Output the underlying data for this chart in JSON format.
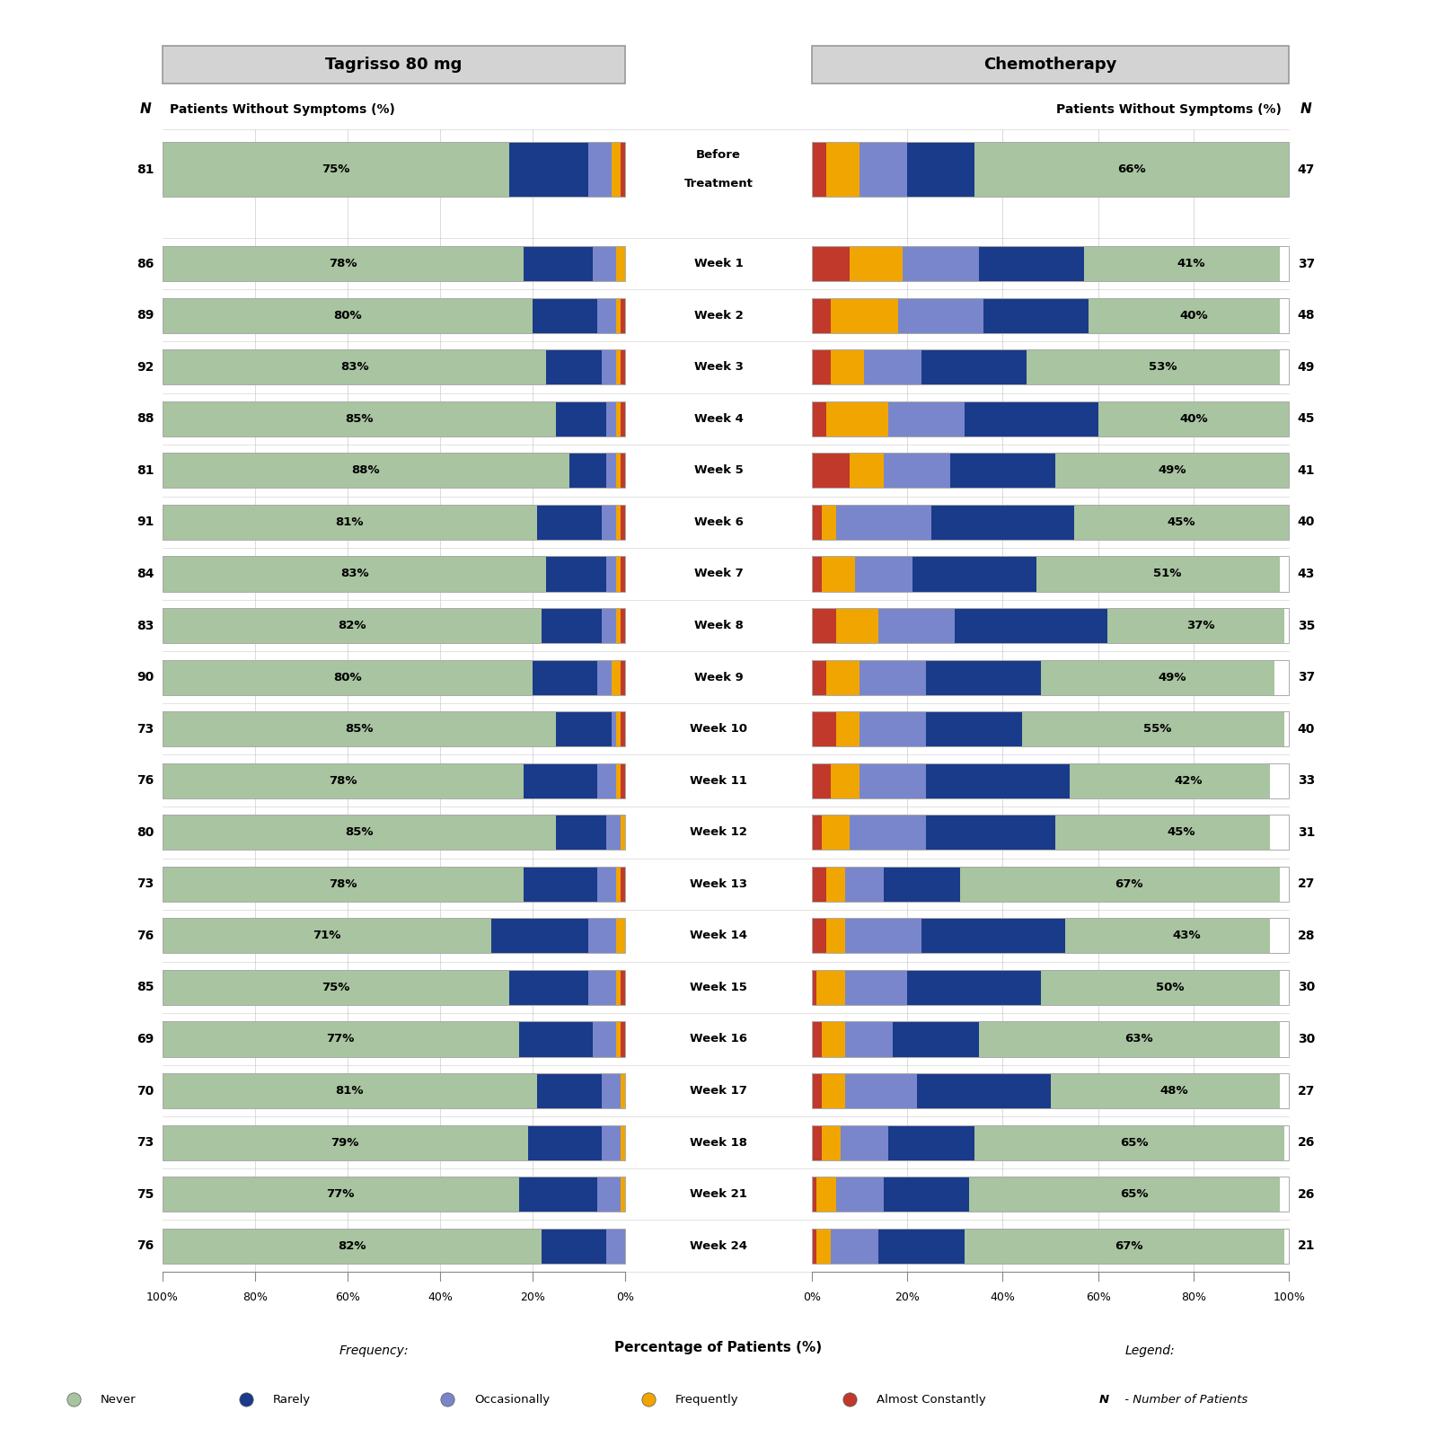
{
  "title_left": "Tagrisso 80 mg",
  "title_right": "Chemotherapy",
  "colors": {
    "Never": "#a8c4a0",
    "Rarely": "#1a3a8a",
    "Occasionally": "#7986cb",
    "Frequently": "#f0a500",
    "Almost Constantly": "#c0392b"
  },
  "time_points": [
    "Before Treatment",
    "Week 1",
    "Week 2",
    "Week 3",
    "Week 4",
    "Week 5",
    "Week 6",
    "Week 7",
    "Week 8",
    "Week 9",
    "Week 10",
    "Week 11",
    "Week 12",
    "Week 13",
    "Week 14",
    "Week 15",
    "Week 16",
    "Week 17",
    "Week 18",
    "Week 21",
    "Week 24"
  ],
  "tagrisso": {
    "N": [
      81,
      86,
      89,
      92,
      88,
      81,
      91,
      84,
      83,
      90,
      73,
      76,
      80,
      73,
      76,
      85,
      69,
      70,
      73,
      75,
      76
    ],
    "never_pct": [
      75,
      78,
      80,
      83,
      85,
      88,
      81,
      83,
      82,
      80,
      85,
      78,
      85,
      78,
      71,
      75,
      77,
      81,
      79,
      77,
      82
    ],
    "rarely": [
      17,
      15,
      14,
      12,
      11,
      8,
      14,
      13,
      13,
      14,
      12,
      16,
      11,
      16,
      21,
      17,
      16,
      14,
      16,
      17,
      14
    ],
    "occasionally": [
      5,
      5,
      4,
      3,
      2,
      2,
      3,
      2,
      3,
      3,
      1,
      4,
      3,
      4,
      6,
      6,
      5,
      4,
      4,
      5,
      4
    ],
    "frequently": [
      2,
      2,
      1,
      1,
      1,
      1,
      1,
      1,
      1,
      2,
      1,
      1,
      1,
      1,
      2,
      1,
      1,
      1,
      1,
      1,
      0
    ],
    "almost_constantly": [
      1,
      0,
      1,
      1,
      1,
      1,
      1,
      1,
      1,
      1,
      1,
      1,
      0,
      1,
      0,
      1,
      1,
      0,
      0,
      0,
      0
    ]
  },
  "chemo": {
    "N": [
      47,
      37,
      48,
      49,
      45,
      41,
      40,
      43,
      35,
      37,
      40,
      33,
      31,
      27,
      28,
      30,
      30,
      27,
      26,
      26,
      21
    ],
    "never_pct": [
      66,
      41,
      40,
      53,
      40,
      49,
      45,
      51,
      37,
      49,
      55,
      42,
      45,
      67,
      43,
      50,
      63,
      48,
      65,
      65,
      67
    ],
    "rarely": [
      14,
      22,
      22,
      22,
      28,
      22,
      30,
      26,
      32,
      24,
      20,
      30,
      27,
      16,
      30,
      28,
      18,
      28,
      18,
      18,
      18
    ],
    "occasionally": [
      10,
      16,
      18,
      12,
      16,
      14,
      20,
      12,
      16,
      14,
      14,
      14,
      16,
      8,
      16,
      13,
      10,
      15,
      10,
      10,
      10
    ],
    "frequently": [
      7,
      11,
      14,
      7,
      13,
      7,
      3,
      7,
      9,
      7,
      5,
      6,
      6,
      4,
      4,
      6,
      5,
      5,
      4,
      4,
      3
    ],
    "almost_constantly": [
      3,
      8,
      4,
      4,
      3,
      8,
      2,
      2,
      5,
      3,
      5,
      4,
      2,
      3,
      3,
      1,
      2,
      2,
      2,
      1,
      1
    ]
  }
}
